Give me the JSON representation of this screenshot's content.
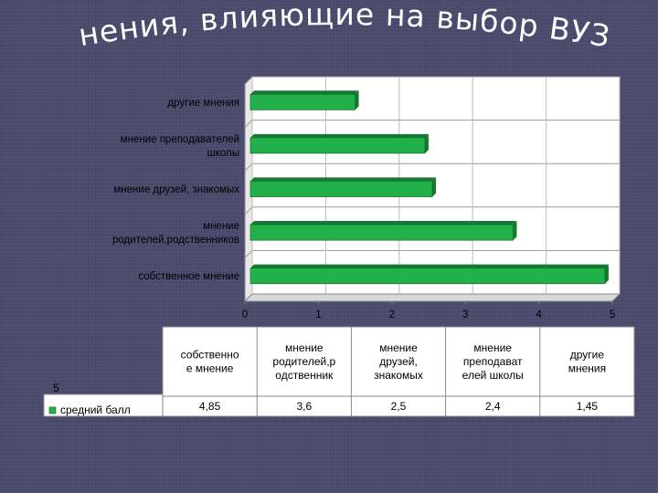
{
  "slide": {
    "title": "Мнения, влияющие на выбор ВУЗа"
  },
  "chart_data": {
    "type": "bar",
    "orientation": "horizontal",
    "categories": [
      "собственное мнение",
      "мнение родителей,родственников",
      "мнение друзей, знакомых",
      "мнение преподавателей школы",
      "другие мнения"
    ],
    "category_labels": [
      [
        "собственное мнение"
      ],
      [
        "мнение",
        "родителей,родственников"
      ],
      [
        "мнение друзей, знакомых"
      ],
      [
        "мнение преподавателей",
        "школы"
      ],
      [
        "другие мнения"
      ]
    ],
    "series": [
      {
        "name": "средний балл",
        "values": [
          4.85,
          3.6,
          2.5,
          2.4,
          1.45
        ]
      }
    ],
    "xlim": [
      0,
      5
    ],
    "x_ticks": [
      "0",
      "1",
      "2",
      "3",
      "4",
      "5"
    ],
    "grid": true,
    "bar_color": "#22b04a",
    "bar_color_dark": "#137a30",
    "plot_bg": "#ffffff",
    "data_table": {
      "header_cells": [
        [
          "собственно",
          "е мнение"
        ],
        [
          "мнение",
          "родителей,р",
          "одственник"
        ],
        [
          "мнение",
          "друзей,",
          "знакомых"
        ],
        [
          "мнение",
          "преподават",
          "елей школы"
        ],
        [
          "другие",
          "мнения"
        ]
      ],
      "corner_label": "5",
      "row_label": "средний балл",
      "values": [
        "4,85",
        "3,6",
        "2,5",
        "2,4",
        "1,45"
      ]
    }
  }
}
